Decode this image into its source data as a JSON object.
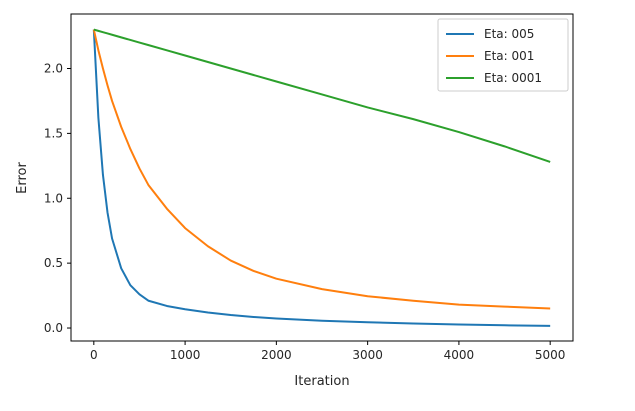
{
  "chart_data": {
    "type": "line",
    "title": "",
    "xlabel": "Iteration",
    "ylabel": "Error",
    "xlim": [
      -250,
      5250
    ],
    "ylim": [
      -0.1,
      2.42
    ],
    "xticks": [
      0,
      1000,
      2000,
      3000,
      4000,
      5000
    ],
    "yticks": [
      0.0,
      0.5,
      1.0,
      1.5,
      2.0
    ],
    "xtick_labels": [
      "0",
      "1000",
      "2000",
      "3000",
      "4000",
      "5000"
    ],
    "ytick_labels": [
      "0.0",
      "0.5",
      "1.0",
      "1.5",
      "2.0"
    ],
    "grid": false,
    "legend_position": "top-right",
    "x": [
      0,
      50,
      100,
      150,
      200,
      300,
      400,
      500,
      600,
      800,
      1000,
      1250,
      1500,
      1750,
      2000,
      2500,
      3000,
      3500,
      4000,
      4500,
      5000
    ],
    "series": [
      {
        "name": "Eta: 005",
        "color": "#1f77b4",
        "values": [
          2.3,
          1.62,
          1.18,
          0.89,
          0.69,
          0.46,
          0.33,
          0.26,
          0.21,
          0.17,
          0.145,
          0.12,
          0.1,
          0.085,
          0.073,
          0.056,
          0.044,
          0.035,
          0.027,
          0.021,
          0.017
        ]
      },
      {
        "name": "Eta: 001",
        "color": "#ff7f0e",
        "values": [
          2.3,
          2.14,
          2.0,
          1.87,
          1.75,
          1.55,
          1.38,
          1.23,
          1.1,
          0.92,
          0.77,
          0.63,
          0.52,
          0.44,
          0.38,
          0.3,
          0.245,
          0.21,
          0.18,
          0.165,
          0.15
        ]
      },
      {
        "name": "Eta: 0001",
        "color": "#2ca02c",
        "values": [
          2.3,
          2.29,
          2.28,
          2.27,
          2.26,
          2.24,
          2.22,
          2.2,
          2.18,
          2.14,
          2.1,
          2.05,
          2.0,
          1.95,
          1.9,
          1.8,
          1.7,
          1.61,
          1.51,
          1.4,
          1.28
        ]
      }
    ]
  }
}
